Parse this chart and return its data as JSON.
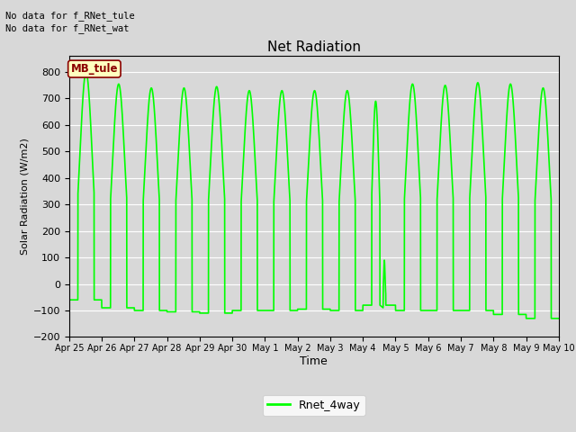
{
  "title": "Net Radiation",
  "xlabel": "Time",
  "ylabel": "Solar Radiation (W/m2)",
  "ylim": [
    -200,
    860
  ],
  "yticks": [
    -200,
    -100,
    0,
    100,
    200,
    300,
    400,
    500,
    600,
    700,
    800
  ],
  "line_color": "#00FF00",
  "line_width": 1.2,
  "plot_bg_color": "#D8D8D8",
  "fig_bg_color": "#D8D8D8",
  "legend_label": "Rnet_4way",
  "no_data_text1": "No data for f_RNet_tule",
  "no_data_text2": "No data for f_RNet_wat",
  "annotation_text": "MB_tule",
  "annotation_bg": "#FFFFC0",
  "annotation_border": "#8B0000",
  "annotation_text_color": "#8B0000",
  "tick_labels": [
    "Apr 25",
    "Apr 26",
    "Apr 27",
    "Apr 28",
    "Apr 29",
    "Apr 30",
    "May 1",
    "May 2",
    "May 3",
    "May 4",
    "May 5",
    "May 6",
    "May 7",
    "May 8",
    "May 9",
    "May 10"
  ],
  "tick_positions": [
    0,
    1,
    2,
    3,
    4,
    5,
    6,
    7,
    8,
    9,
    10,
    11,
    12,
    13,
    14,
    15
  ],
  "peaks": [
    800,
    755,
    740,
    740,
    745,
    730,
    730,
    730,
    730,
    690,
    755,
    750,
    760,
    755,
    740
  ],
  "night_vals": [
    -60,
    -90,
    -100,
    -105,
    -110,
    -100,
    -100,
    -95,
    -100,
    -80,
    -100,
    -100,
    -100,
    -115,
    -130
  ]
}
